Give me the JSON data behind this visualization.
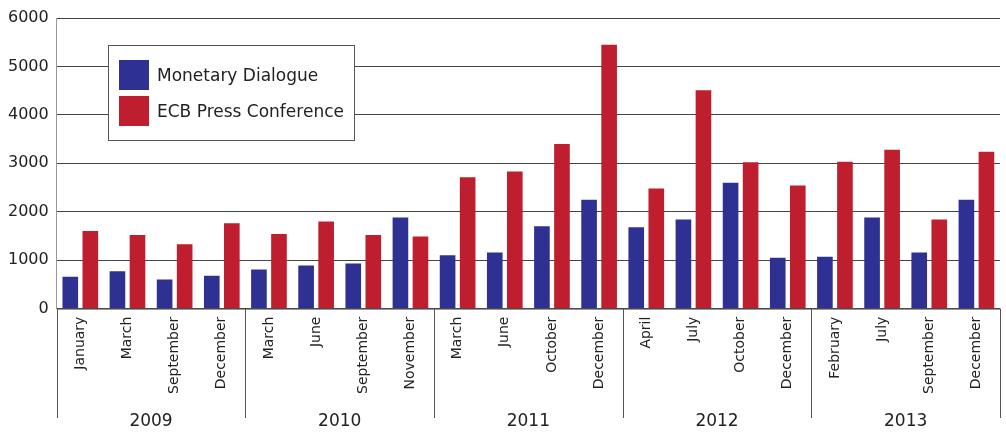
{
  "chart_data": {
    "type": "bar",
    "categories": [
      "January",
      "March",
      "September",
      "December",
      "March",
      "June",
      "September",
      "November",
      "March",
      "June",
      "October",
      "December",
      "April",
      "July",
      "October",
      "December",
      "February",
      "July",
      "September",
      "December"
    ],
    "series": [
      {
        "name": "Monetary Dialogue",
        "color": "#2e3192",
        "values": [
          660,
          770,
          600,
          680,
          810,
          890,
          930,
          1880,
          1100,
          1160,
          1700,
          2250,
          1680,
          1840,
          2600,
          1050,
          1070,
          1880,
          1160,
          2250
        ]
      },
      {
        "name": "ECB Press Conference",
        "color": "#be1e2d",
        "values": [
          1600,
          1520,
          1330,
          1760,
          1540,
          1800,
          1520,
          1490,
          2710,
          2830,
          3400,
          5450,
          2480,
          4510,
          3020,
          2540,
          3030,
          3280,
          1840,
          3240
        ]
      }
    ],
    "annotations": [
      "2009",
      "2010",
      "2011",
      "2012",
      "2013"
    ],
    "ylim": [
      0,
      6000
    ],
    "yticks": [
      0,
      1000,
      2000,
      3000,
      4000,
      5000,
      6000
    ],
    "grid": "y",
    "legend": "top left"
  }
}
